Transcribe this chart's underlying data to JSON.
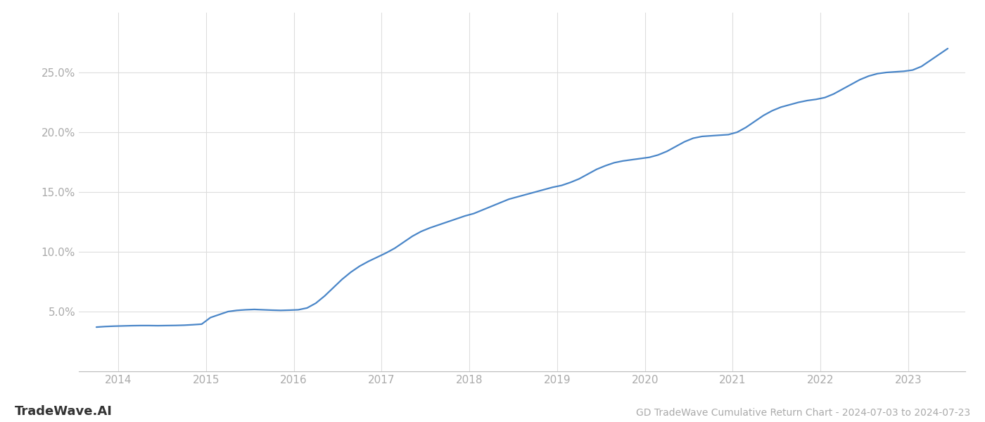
{
  "title": "GD TradeWave Cumulative Return Chart - 2024-07-03 to 2024-07-23",
  "watermark": "TradeWave.AI",
  "line_color": "#4a86c8",
  "background_color": "#ffffff",
  "grid_color": "#dddddd",
  "x_years": [
    2014,
    2015,
    2016,
    2017,
    2018,
    2019,
    2020,
    2021,
    2022,
    2023
  ],
  "x_data": [
    2013.75,
    2013.85,
    2013.95,
    2014.05,
    2014.15,
    2014.25,
    2014.35,
    2014.45,
    2014.55,
    2014.65,
    2014.75,
    2014.85,
    2014.95,
    2015.05,
    2015.15,
    2015.25,
    2015.35,
    2015.45,
    2015.55,
    2015.65,
    2015.75,
    2015.85,
    2015.95,
    2016.05,
    2016.15,
    2016.25,
    2016.35,
    2016.45,
    2016.55,
    2016.65,
    2016.75,
    2016.85,
    2016.95,
    2017.05,
    2017.15,
    2017.25,
    2017.35,
    2017.45,
    2017.55,
    2017.65,
    2017.75,
    2017.85,
    2017.95,
    2018.05,
    2018.15,
    2018.25,
    2018.35,
    2018.45,
    2018.55,
    2018.65,
    2018.75,
    2018.85,
    2018.95,
    2019.05,
    2019.15,
    2019.25,
    2019.35,
    2019.45,
    2019.55,
    2019.65,
    2019.75,
    2019.85,
    2019.95,
    2020.05,
    2020.15,
    2020.25,
    2020.35,
    2020.45,
    2020.55,
    2020.65,
    2020.75,
    2020.85,
    2020.95,
    2021.05,
    2021.15,
    2021.25,
    2021.35,
    2021.45,
    2021.55,
    2021.65,
    2021.75,
    2021.85,
    2021.95,
    2022.05,
    2022.15,
    2022.25,
    2022.35,
    2022.45,
    2022.55,
    2022.65,
    2022.75,
    2022.85,
    2022.95,
    2023.05,
    2023.15,
    2023.25,
    2023.35,
    2023.45
  ],
  "y_data": [
    3.7,
    3.75,
    3.78,
    3.8,
    3.82,
    3.83,
    3.83,
    3.82,
    3.83,
    3.84,
    3.86,
    3.9,
    3.95,
    4.5,
    4.75,
    5.0,
    5.1,
    5.15,
    5.18,
    5.15,
    5.12,
    5.1,
    5.12,
    5.15,
    5.3,
    5.7,
    6.3,
    7.0,
    7.7,
    8.3,
    8.8,
    9.2,
    9.55,
    9.9,
    10.3,
    10.8,
    11.3,
    11.7,
    12.0,
    12.25,
    12.5,
    12.75,
    13.0,
    13.2,
    13.5,
    13.8,
    14.1,
    14.4,
    14.6,
    14.8,
    15.0,
    15.2,
    15.4,
    15.55,
    15.8,
    16.1,
    16.5,
    16.9,
    17.2,
    17.45,
    17.6,
    17.7,
    17.8,
    17.9,
    18.1,
    18.4,
    18.8,
    19.2,
    19.5,
    19.65,
    19.7,
    19.75,
    19.8,
    20.0,
    20.4,
    20.9,
    21.4,
    21.8,
    22.1,
    22.3,
    22.5,
    22.65,
    22.75,
    22.9,
    23.2,
    23.6,
    24.0,
    24.4,
    24.7,
    24.9,
    25.0,
    25.05,
    25.1,
    25.2,
    25.5,
    26.0,
    26.5,
    27.0
  ],
  "ylim": [
    0,
    30
  ],
  "yticks": [
    5.0,
    10.0,
    15.0,
    20.0,
    25.0
  ],
  "xlim": [
    2013.55,
    2023.65
  ],
  "tick_label_color": "#aaaaaa",
  "tick_label_fontsize": 11,
  "watermark_fontsize": 13,
  "title_fontsize": 10,
  "line_width": 1.6
}
